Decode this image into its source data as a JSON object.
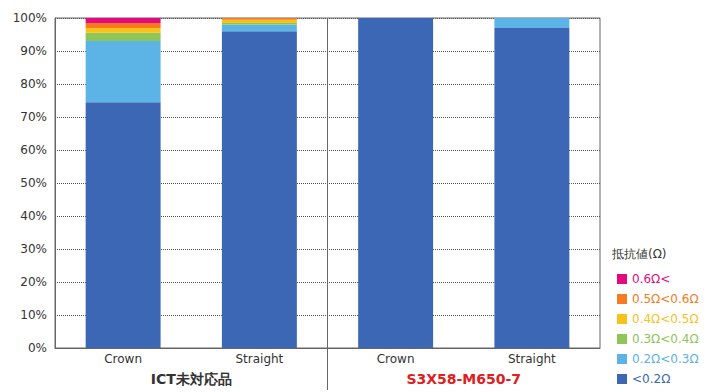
{
  "chart_data": {
    "type": "bar",
    "stacked": true,
    "categories": [
      "Crown",
      "Straight",
      "Crown",
      "Straight"
    ],
    "groups": [
      {
        "label": "ICT未対応品",
        "span": 2,
        "color": "#333333"
      },
      {
        "label": "S3X58-M650-7",
        "span": 2,
        "color": "#e02020"
      }
    ],
    "series": [
      {
        "name": "<0.2Ω",
        "color": "#3b67b4",
        "values": [
          74.5,
          96,
          100,
          97
        ]
      },
      {
        "name": "0.2Ω<0.3Ω",
        "color": "#5bb3e6",
        "values": [
          18.5,
          2,
          0,
          3
        ]
      },
      {
        "name": "0.3Ω<0.4Ω",
        "color": "#8dc556",
        "values": [
          2.5,
          0.5,
          0,
          0
        ]
      },
      {
        "name": "0.4Ω<0.5Ω",
        "color": "#f8c21b",
        "values": [
          1.5,
          1,
          0,
          0
        ]
      },
      {
        "name": "0.5Ω<0.6Ω",
        "color": "#f47b20",
        "values": [
          1.5,
          0.5,
          0,
          0
        ]
      },
      {
        "name": "0.6Ω<",
        "color": "#e5097f",
        "values": [
          1.5,
          0,
          0,
          0
        ]
      }
    ],
    "ylim": [
      0,
      100
    ],
    "yticks": [
      {
        "value": 0,
        "label": "0%"
      },
      {
        "value": 10,
        "label": "10%"
      },
      {
        "value": 20,
        "label": "20%"
      },
      {
        "value": 30,
        "label": "30%"
      },
      {
        "value": 40,
        "label": "40%"
      },
      {
        "value": 50,
        "label": "50%"
      },
      {
        "value": 60,
        "label": "60%"
      },
      {
        "value": 70,
        "label": "70%"
      },
      {
        "value": 80,
        "label": "80%"
      },
      {
        "value": 90,
        "label": "90%"
      },
      {
        "value": 100,
        "label": "100%"
      }
    ],
    "grid": true,
    "legend": "right",
    "legend_title": "抵抗値(Ω)"
  }
}
